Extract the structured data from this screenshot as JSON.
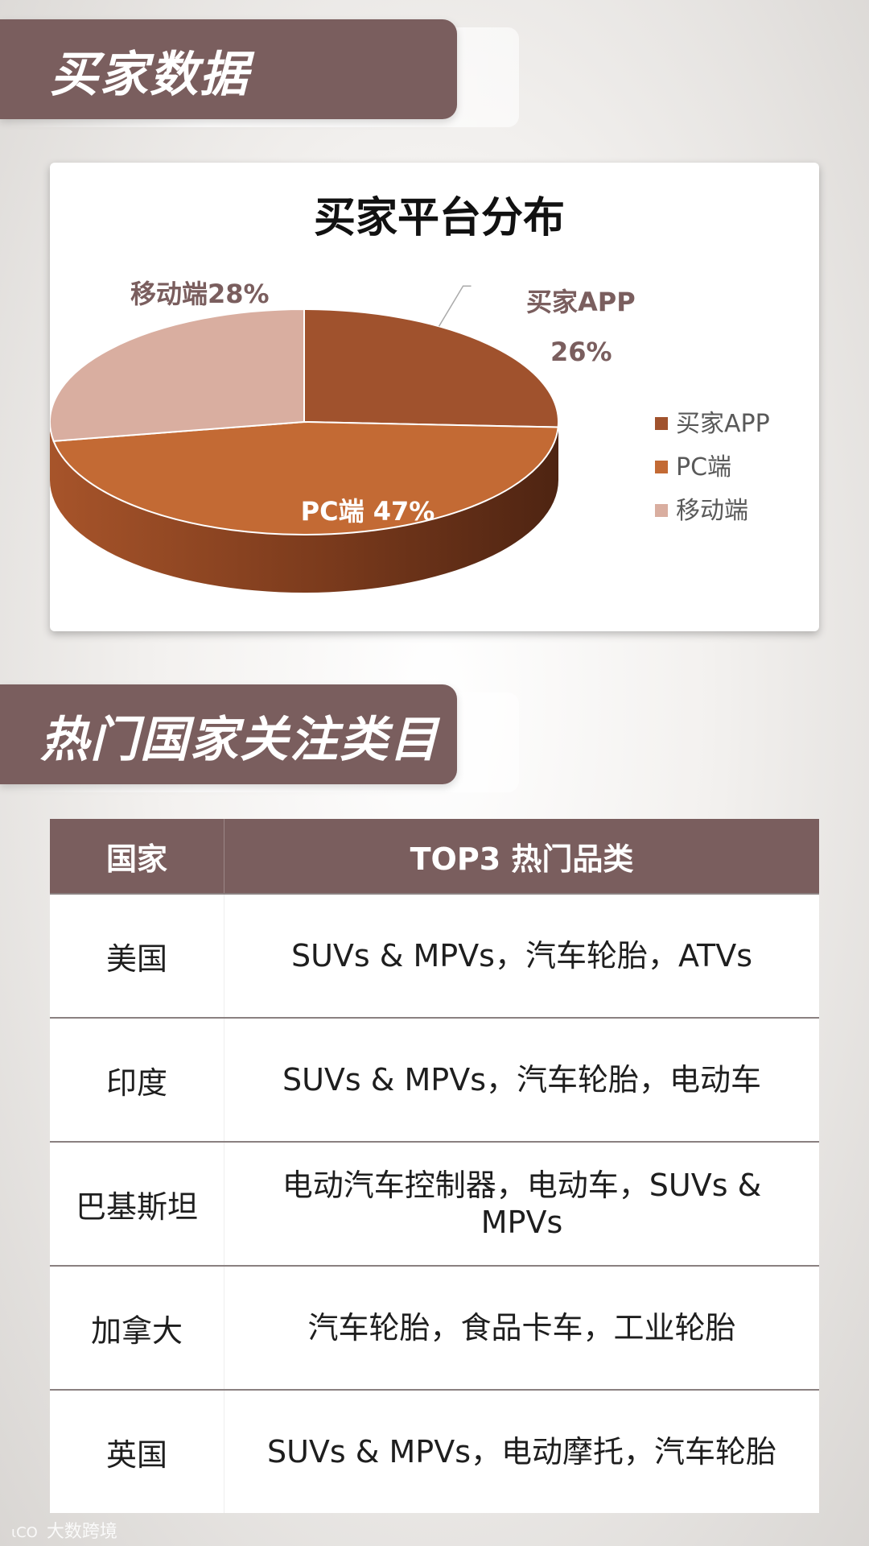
{
  "sections": {
    "buyer_data_title": "买家数据",
    "hot_categories_title": "热门国家关注类目"
  },
  "chart_data": {
    "type": "pie",
    "title": "买家平台分布",
    "slices": [
      {
        "name": "买家APP",
        "value": 26,
        "label": "买家APP",
        "label2": "26%",
        "color": "#a0522d"
      },
      {
        "name": "PC端",
        "value": 47,
        "label": "PC端 47%",
        "color": "#c36a34"
      },
      {
        "name": "移动端",
        "value": 28,
        "label": "移动端28%",
        "color": "#d9aea0"
      }
    ],
    "legend": {
      "placement": "right",
      "items": [
        {
          "label": "买家APP",
          "color": "#a0522d"
        },
        {
          "label": "PC端",
          "color": "#c36a34"
        },
        {
          "label": "移动端",
          "color": "#d9aea0"
        }
      ]
    }
  },
  "table": {
    "headers": [
      "国家",
      "TOP3 热门品类"
    ],
    "rows": [
      {
        "country": "美国",
        "categories": "SUVs & MPVs，汽车轮胎，ATVs"
      },
      {
        "country": "印度",
        "categories": "SUVs & MPVs，汽车轮胎，电动车"
      },
      {
        "country": "巴基斯坦",
        "categories": "电动汽车控制器，电动车，SUVs & MPVs"
      },
      {
        "country": "加拿大",
        "categories": "汽车轮胎，食品卡车，工业轮胎"
      },
      {
        "country": "英国",
        "categories": "SUVs & MPVs，电动摩托，汽车轮胎"
      }
    ]
  },
  "watermark": {
    "logo": "ιCO",
    "text": "大数跨境"
  }
}
